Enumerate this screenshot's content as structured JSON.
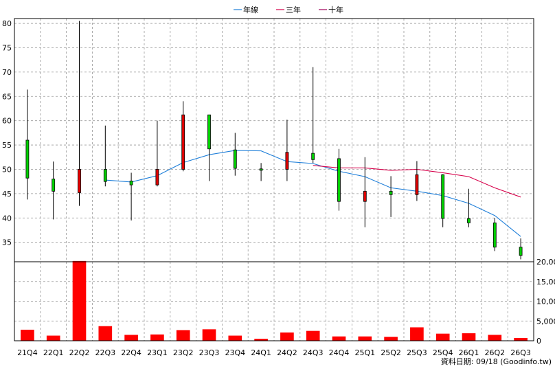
{
  "legend": [
    {
      "label": "年線",
      "color": "#1f7fd9"
    },
    {
      "label": "三年",
      "color": "#d6004a"
    },
    {
      "label": "十年",
      "color": "#a0005a"
    }
  ],
  "footer": "資料日期: 09/18  (Goodinfo.tw)",
  "chart_data": {
    "type": "candlestick",
    "legend_position": "top-center",
    "grid": true,
    "price_ylim": [
      31,
      81
    ],
    "price_ticks": [
      35,
      40,
      45,
      50,
      55,
      60,
      65,
      70,
      75,
      80
    ],
    "volume_ylim": [
      0,
      20000
    ],
    "volume_ticks": [
      "0",
      "5,000",
      "10,000",
      "15,000",
      "20,000"
    ],
    "volume_tick_values": [
      0,
      5000,
      10000,
      15000,
      20000
    ],
    "categories": [
      "21Q4",
      "22Q1",
      "22Q2",
      "22Q3",
      "22Q4",
      "23Q1",
      "23Q2",
      "23Q3",
      "23Q4",
      "24Q1",
      "24Q2",
      "24Q3",
      "24Q4",
      "25Q1",
      "25Q2",
      "25Q3",
      "25Q4",
      "26Q1",
      "26Q2",
      "26Q3"
    ],
    "candles": [
      {
        "open": 48.2,
        "high": 66.4,
        "low": 43.8,
        "close": 56.0
      },
      {
        "open": 45.5,
        "high": 51.6,
        "low": 39.7,
        "close": 48.0
      },
      {
        "open": 50.0,
        "high": 80.5,
        "low": 42.5,
        "close": 45.2
      },
      {
        "open": 47.5,
        "high": 59.0,
        "low": 46.5,
        "close": 50.0
      },
      {
        "open": 46.8,
        "high": 49.3,
        "low": 39.5,
        "close": 47.6
      },
      {
        "open": 50.0,
        "high": 60.0,
        "low": 46.5,
        "close": 46.8
      },
      {
        "open": 61.2,
        "high": 64.0,
        "low": 49.6,
        "close": 50.0
      },
      {
        "open": 54.2,
        "high": 61.2,
        "low": 47.6,
        "close": 61.2
      },
      {
        "open": 50.2,
        "high": 57.5,
        "low": 48.7,
        "close": 54.0
      },
      {
        "open": 49.8,
        "high": 51.3,
        "low": 47.6,
        "close": 50.1
      },
      {
        "open": 53.5,
        "high": 60.2,
        "low": 47.6,
        "close": 50.0
      },
      {
        "open": 52.0,
        "high": 71.0,
        "low": 51.3,
        "close": 53.3
      },
      {
        "open": 43.4,
        "high": 54.2,
        "low": 41.5,
        "close": 52.2
      },
      {
        "open": 45.5,
        "high": 52.5,
        "low": 38.1,
        "close": 43.4
      },
      {
        "open": 44.8,
        "high": 48.6,
        "low": 40.2,
        "close": 45.5
      },
      {
        "open": 48.9,
        "high": 51.7,
        "low": 43.5,
        "close": 44.8
      },
      {
        "open": 39.9,
        "high": 49.0,
        "low": 38.1,
        "close": 48.9
      },
      {
        "open": 39.0,
        "high": 46.0,
        "low": 38.1,
        "close": 39.9
      },
      {
        "open": 34.0,
        "high": 40.0,
        "low": 33.2,
        "close": 39.0
      },
      {
        "open": 32.3,
        "high": 35.8,
        "low": 31.5,
        "close": 34.0
      }
    ],
    "series": [
      {
        "name": "年線",
        "color": "#1f7fd9",
        "values": [
          null,
          null,
          null,
          47.8,
          47.4,
          48.7,
          51.4,
          53.0,
          53.9,
          53.8,
          51.6,
          51.2,
          49.6,
          48.5,
          46.2,
          45.5,
          44.6,
          43.0,
          40.5,
          36.2
        ]
      },
      {
        "name": "三年",
        "color": "#d6004a",
        "values": [
          null,
          null,
          null,
          null,
          null,
          null,
          null,
          null,
          null,
          null,
          null,
          50.8,
          50.3,
          50.3,
          49.8,
          50.0,
          49.3,
          48.5,
          46.2,
          44.3
        ]
      }
    ],
    "volumes": [
      2800,
      1300,
      20200,
      3700,
      1500,
      1600,
      2700,
      2900,
      1300,
      500,
      2100,
      2500,
      1100,
      1100,
      1000,
      3400,
      1800,
      1900,
      1500,
      700
    ]
  }
}
